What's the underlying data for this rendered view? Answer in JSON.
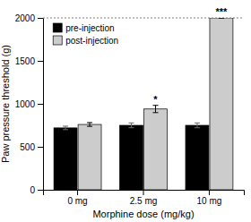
{
  "chart_data": {
    "type": "bar",
    "x_label": "Morphine dose (mg/kg)",
    "y_label": "Paw pressure threshold (g)",
    "categories": [
      "0 mg",
      "2.5 mg",
      "10 mg"
    ],
    "series": [
      {
        "name": "pre-injection",
        "color": "#000000",
        "values": [
          720,
          750,
          750
        ],
        "errors": [
          20,
          28,
          28
        ]
      },
      {
        "name": "post-injection",
        "color": "#cccccc",
        "values": [
          760,
          940,
          2000
        ],
        "errors": [
          22,
          42,
          0
        ]
      }
    ],
    "annotations": [
      {
        "text": "*",
        "category": "2.5 mg",
        "series": "post-injection"
      },
      {
        "text": "***",
        "category": "10 mg",
        "series": "post-injection"
      }
    ],
    "ylim": [
      0,
      2000
    ],
    "yticks": [
      0,
      500,
      1000,
      1500,
      2000
    ],
    "legend": "upper left"
  }
}
